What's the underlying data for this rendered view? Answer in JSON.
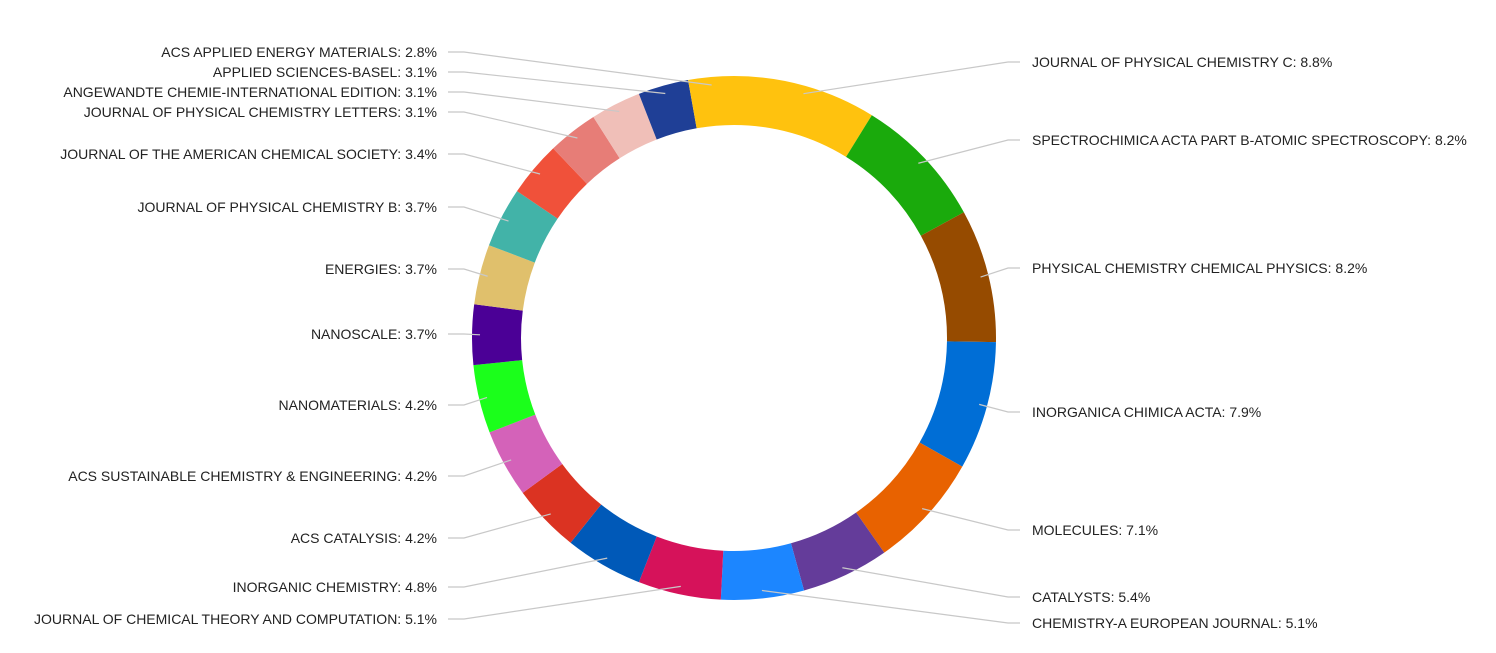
{
  "chart_data": {
    "type": "pie",
    "style": "donut",
    "slices": [
      {
        "label": "JOURNAL OF PHYSICAL CHEMISTRY C",
        "value": 8.8,
        "display": "8.8%",
        "color": "#FFC20E",
        "side": "right"
      },
      {
        "label": "SPECTROCHIMICA ACTA PART B-ATOMIC SPECTROSCOPY",
        "value": 8.2,
        "display": "8.2%",
        "color": "#1AAA0C",
        "side": "right"
      },
      {
        "label": "PHYSICAL CHEMISTRY CHEMICAL PHYSICS",
        "value": 8.2,
        "display": "8.2%",
        "color": "#964B00",
        "side": "right"
      },
      {
        "label": "INORGANICA CHIMICA ACTA",
        "value": 7.9,
        "display": "7.9%",
        "color": "#006ED6",
        "side": "right"
      },
      {
        "label": "MOLECULES",
        "value": 7.1,
        "display": "7.1%",
        "color": "#E86200",
        "side": "right"
      },
      {
        "label": "CATALYSTS",
        "value": 5.4,
        "display": "5.4%",
        "color": "#643C9A",
        "side": "right"
      },
      {
        "label": "CHEMISTRY-A EUROPEAN JOURNAL",
        "value": 5.1,
        "display": "5.1%",
        "color": "#1C86FF",
        "side": "right"
      },
      {
        "label": "JOURNAL OF CHEMICAL THEORY AND COMPUTATION",
        "value": 5.1,
        "display": "5.1%",
        "color": "#D6125A",
        "side": "left"
      },
      {
        "label": "INORGANIC CHEMISTRY",
        "value": 4.8,
        "display": "4.8%",
        "color": "#0059B8",
        "side": "left"
      },
      {
        "label": "ACS CATALYSIS",
        "value": 4.2,
        "display": "4.2%",
        "color": "#DB3322",
        "side": "left"
      },
      {
        "label": "ACS SUSTAINABLE CHEMISTRY & ENGINEERING",
        "value": 4.2,
        "display": "4.2%",
        "color": "#D462B9",
        "side": "left"
      },
      {
        "label": "NANOMATERIALS",
        "value": 4.2,
        "display": "4.2%",
        "color": "#1BFF1B",
        "side": "left"
      },
      {
        "label": "NANOSCALE",
        "value": 3.7,
        "display": "3.7%",
        "color": "#4B0096",
        "side": "left"
      },
      {
        "label": "ENERGIES",
        "value": 3.7,
        "display": "3.7%",
        "color": "#E0C06C",
        "side": "left"
      },
      {
        "label": "JOURNAL OF PHYSICAL CHEMISTRY B",
        "value": 3.7,
        "display": "3.7%",
        "color": "#42B3A8",
        "side": "left"
      },
      {
        "label": "JOURNAL OF THE AMERICAN CHEMICAL SOCIETY",
        "value": 3.4,
        "display": "3.4%",
        "color": "#F0513A",
        "side": "left"
      },
      {
        "label": "JOURNAL OF PHYSICAL CHEMISTRY LETTERS",
        "value": 3.1,
        "display": "3.1%",
        "color": "#E77D77",
        "side": "left"
      },
      {
        "label": "ANGEWANDTE CHEMIE-INTERNATIONAL EDITION",
        "value": 3.1,
        "display": "3.1%",
        "color": "#F0BFB8",
        "side": "left"
      },
      {
        "label": "APPLIED SCIENCES-BASEL",
        "value": 3.1,
        "display": "3.1%",
        "color": "#1F3F96",
        "side": "left"
      },
      {
        "label": "ACS APPLIED ENERGY MATERIALS",
        "value": 2.8,
        "display": "2.8%",
        "color": "#FFC20E",
        "side": "left"
      }
    ],
    "legend": "none",
    "labels": "outside with leader lines"
  }
}
